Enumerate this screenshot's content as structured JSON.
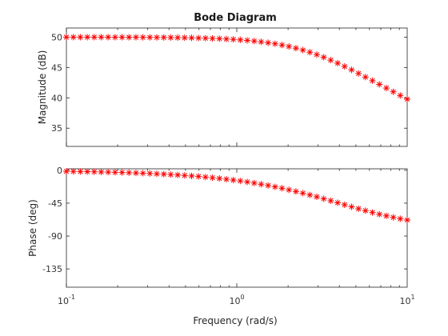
{
  "chart_data": {
    "type": "scatter",
    "title": "Bode Diagram",
    "xlabel": "Frequency (rad/s)",
    "xscale": "log",
    "xlim": [
      0.1,
      10
    ],
    "xticks": [
      0.1,
      1,
      10
    ],
    "marker_color": "#ff0000",
    "marker": "asterisk",
    "grid": false,
    "x": [
      0.1,
      0.1099,
      0.1207,
      0.1326,
      0.1456,
      0.16,
      0.1758,
      0.1931,
      0.2121,
      0.233,
      0.256,
      0.2812,
      0.3089,
      0.3393,
      0.3728,
      0.4095,
      0.4498,
      0.4942,
      0.5429,
      0.5964,
      0.6551,
      0.7197,
      0.7906,
      0.8685,
      0.954,
      1.048,
      1.1514,
      1.2649,
      1.3895,
      1.5264,
      1.6768,
      1.842,
      2.0236,
      2.2229,
      2.442,
      2.6827,
      2.947,
      3.2375,
      3.5565,
      3.9069,
      4.2919,
      4.7149,
      5.1795,
      5.6899,
      6.2506,
      6.8665,
      7.5431,
      8.2864,
      9.103,
      10.0
    ],
    "subplots": [
      {
        "ylabel": "Magnitude (dB)",
        "ylim": [
          32,
          51.5
        ],
        "yticks": [
          35,
          40,
          45,
          50
        ],
        "y": [
          49.996,
          49.995,
          49.994,
          49.992,
          49.991,
          49.989,
          49.987,
          49.984,
          49.981,
          49.977,
          49.972,
          49.966,
          49.959,
          49.951,
          49.941,
          49.929,
          49.915,
          49.897,
          49.876,
          49.851,
          49.82,
          49.784,
          49.74,
          49.687,
          49.624,
          49.549,
          49.459,
          49.352,
          49.225,
          49.075,
          48.899,
          48.693,
          48.454,
          48.179,
          47.866,
          47.513,
          47.119,
          46.685,
          46.212,
          45.705,
          45.167,
          44.604,
          44.022,
          43.427,
          42.823,
          42.215,
          41.605,
          40.995,
          40.386,
          39.776
        ]
      },
      {
        "ylabel": "Phase (deg)",
        "ylim": [
          -160,
          2
        ],
        "yticks": [
          0,
          -45,
          -90,
          -135
        ],
        "y": [
          -1.43,
          -1.57,
          -1.73,
          -1.9,
          -2.09,
          -2.29,
          -2.52,
          -2.76,
          -3.04,
          -3.33,
          -3.66,
          -4.02,
          -4.42,
          -4.85,
          -5.33,
          -5.85,
          -6.42,
          -7.05,
          -7.74,
          -8.49,
          -9.31,
          -10.21,
          -11.19,
          -12.25,
          -13.41,
          -14.67,
          -16.03,
          -17.51,
          -19.1,
          -20.82,
          -22.67,
          -24.64,
          -26.75,
          -28.98,
          -31.33,
          -33.8,
          -36.37,
          -39.02,
          -41.74,
          -44.49,
          -47.25,
          -49.99,
          -52.68,
          -55.28,
          -57.78,
          -60.15,
          -62.37,
          -64.43,
          -66.33,
          -68.05
        ]
      }
    ]
  }
}
